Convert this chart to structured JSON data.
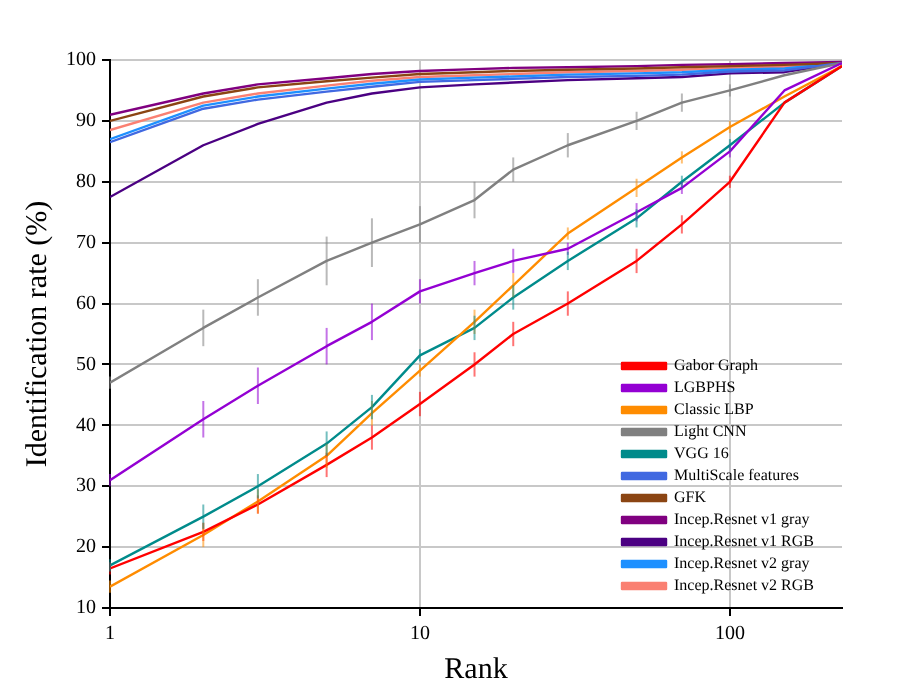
{
  "chart_data": {
    "type": "line",
    "xlabel": "Rank",
    "ylabel": "Identification rate (%)",
    "log": "x",
    "xlim": [
      1,
      230
    ],
    "xticks": [
      1,
      10,
      100
    ],
    "ylim": [
      10,
      100
    ],
    "yticks": [
      10,
      20,
      30,
      40,
      50,
      60,
      70,
      80,
      90,
      100
    ],
    "grid": true,
    "legend": "bottom right",
    "marker": "none",
    "line_style": "solid",
    "x": [
      1,
      2,
      3,
      5,
      7,
      10,
      15,
      20,
      30,
      50,
      70,
      100,
      150,
      230
    ],
    "series": [
      {
        "name": "Gabor Graph",
        "color": "#ff0000",
        "values": [
          16.5,
          22.5,
          27,
          33.5,
          38,
          43.5,
          50,
          55,
          60,
          67,
          73,
          80,
          93,
          99
        ],
        "errors": [
          1,
          1.5,
          1.5,
          2,
          2,
          2,
          2,
          2,
          2,
          2,
          1.5,
          1,
          null,
          null
        ]
      },
      {
        "name": "LGBPHS",
        "color": "#9400d3",
        "values": [
          31,
          41,
          46.5,
          53,
          57,
          62,
          65,
          67,
          69,
          75,
          79,
          85,
          95,
          99.5
        ],
        "errors": [
          1,
          3,
          3,
          3,
          3,
          2,
          2,
          2,
          1,
          1.5,
          1,
          1,
          null,
          null
        ]
      },
      {
        "name": "Classic LBP",
        "color": "#ff8c00",
        "values": [
          13.5,
          22,
          27.5,
          35,
          42,
          49,
          57,
          63,
          71.5,
          79,
          84,
          89,
          94,
          99
        ],
        "errors": [
          1,
          2,
          2,
          2,
          2,
          1,
          2,
          2,
          1,
          1.5,
          1,
          1,
          null,
          null
        ]
      },
      {
        "name": "Light CNN",
        "color": "#808080",
        "values": [
          47,
          56,
          61,
          67,
          70,
          73,
          77,
          82,
          86,
          90,
          93,
          95,
          97.5,
          99.5
        ],
        "errors": [
          1,
          3,
          3,
          4,
          4,
          3,
          3,
          2,
          2,
          1.5,
          1.5,
          1,
          null,
          null
        ]
      },
      {
        "name": "VGG 16",
        "color": "#008b8b",
        "values": [
          17,
          25,
          30,
          37,
          43,
          51.5,
          56,
          61,
          67,
          74,
          80,
          86,
          93,
          99
        ],
        "errors": [
          1,
          2,
          2,
          2,
          2,
          1,
          2,
          2,
          1.5,
          1.5,
          1,
          1,
          null,
          null
        ]
      },
      {
        "name": "MultiScale features",
        "color": "#4169e1",
        "values": [
          86.5,
          92,
          93.5,
          94.8,
          95.6,
          96.4,
          96.7,
          96.9,
          97.2,
          97.4,
          97.6,
          98.1,
          98.3,
          99.5
        ]
      },
      {
        "name": "GFK",
        "color": "#8b4513",
        "values": [
          90,
          94,
          95.5,
          96.5,
          97.1,
          97.7,
          98,
          98.2,
          98.4,
          98.6,
          98.8,
          99,
          99.2,
          99.5
        ]
      },
      {
        "name": "Incep.Resnet v1 gray",
        "color": "#800080",
        "values": [
          91,
          94.5,
          96,
          97,
          97.7,
          98.2,
          98.5,
          98.7,
          98.8,
          99,
          99.2,
          99.3,
          99.5,
          99.7
        ]
      },
      {
        "name": "Incep.Resnet v1 RGB",
        "color": "#4b0082",
        "values": [
          77.5,
          86,
          89.5,
          93,
          94.5,
          95.5,
          96,
          96.3,
          96.7,
          97,
          97.2,
          97.8,
          98,
          99.5
        ]
      },
      {
        "name": "Incep.Resnet v2 gray",
        "color": "#1e90ff",
        "values": [
          87,
          92.5,
          94,
          95.3,
          96.1,
          96.8,
          97.1,
          97.3,
          97.6,
          97.8,
          98,
          98.4,
          98.6,
          99.5
        ]
      },
      {
        "name": "Incep.Resnet v2 RGB",
        "color": "#fa8072",
        "values": [
          88.5,
          93,
          94.5,
          95.8,
          96.6,
          97.2,
          97.5,
          97.7,
          98,
          98.2,
          98.4,
          98.7,
          98.9,
          99.5
        ]
      }
    ]
  }
}
